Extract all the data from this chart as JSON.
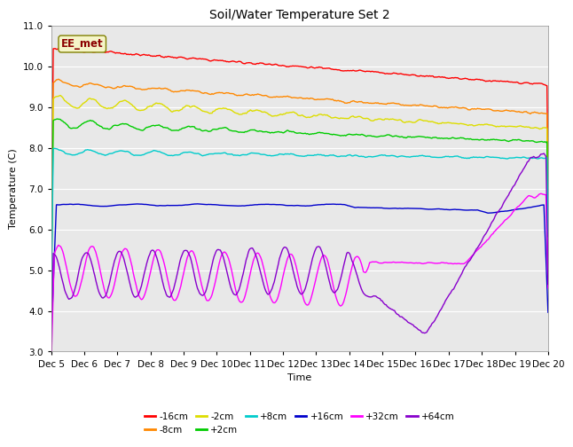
{
  "title": "Soil/Water Temperature Set 2",
  "xlabel": "Time",
  "ylabel": "Temperature (C)",
  "ylim": [
    3.0,
    11.0
  ],
  "yticks": [
    3.0,
    4.0,
    5.0,
    6.0,
    7.0,
    8.0,
    9.0,
    10.0,
    11.0
  ],
  "x_labels": [
    "Dec 5",
    "Dec 6",
    "Dec 7",
    "Dec 8",
    "Dec 9",
    "Dec 10",
    "Dec 11",
    "Dec 12",
    "Dec 13",
    "Dec 14",
    "Dec 15",
    "Dec 16",
    "Dec 17",
    "Dec 18",
    "Dec 19",
    "Dec 20"
  ],
  "n_points": 480,
  "fig_bg": "#ffffff",
  "plot_bg": "#e8e8e8",
  "grid_color": "#ffffff",
  "annotation_text": "EE_met",
  "annotation_color": "#8b0000",
  "annotation_bg": "#f5f5c8",
  "annotation_edge": "#808000",
  "series": [
    {
      "label": "-16cm",
      "color": "#ff0000"
    },
    {
      "label": "-8cm",
      "color": "#ff8800"
    },
    {
      "label": "-2cm",
      "color": "#dddd00"
    },
    {
      "label": "+2cm",
      "color": "#00cc00"
    },
    {
      "label": "+8cm",
      "color": "#00cccc"
    },
    {
      "label": "+16cm",
      "color": "#0000cc"
    },
    {
      "label": "+32cm",
      "color": "#ff00ff"
    },
    {
      "label": "+64cm",
      "color": "#8800cc"
    }
  ]
}
